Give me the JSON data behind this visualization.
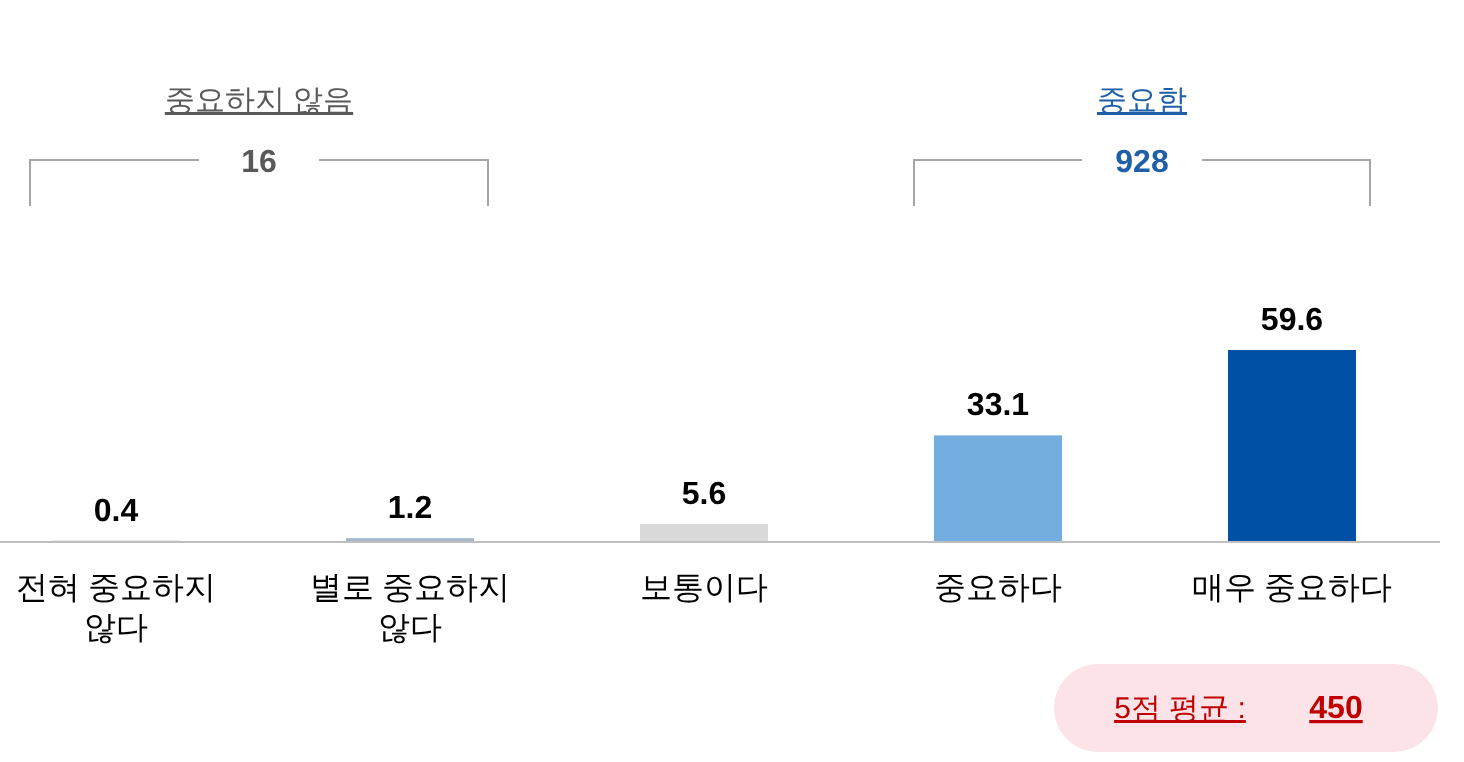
{
  "chart_data": {
    "type": "bar",
    "categories": [
      "전혀 중요하지 않다",
      "별로 중요하지 않다",
      "보통이다",
      "중요하다",
      "매우 중요하다"
    ],
    "values": [
      0.4,
      1.2,
      5.6,
      33.1,
      59.6
    ],
    "colors": [
      "#a6b8cc",
      "#a6b8cc",
      "#d9d9d9",
      "#74aee0",
      "#0050a5"
    ],
    "data_labels": true,
    "annotations": [
      "중요하지 않음",
      "16",
      "중요함",
      "928",
      "5점 평균 :",
      "450"
    ]
  }
}
